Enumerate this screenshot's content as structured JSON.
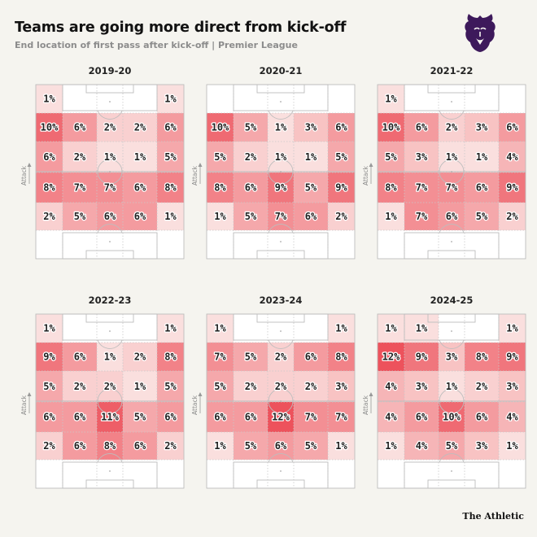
{
  "title": "Teams are going more direct from kick-off",
  "subtitle": "End location of first pass after kick-off | Premier League",
  "source": "The Athletic",
  "logo_icon": "premier-league-lion-icon",
  "colors": {
    "accent": "#e8474f",
    "logo_purple": "#3d195b",
    "empty": "#ffffff",
    "pitch_lines": "#b9b9b9"
  },
  "chart_data": {
    "type": "heatmap",
    "description_axis": "Attack",
    "value_unit": "%",
    "columns": 5,
    "rows": 6,
    "seasons": [
      {
        "season": "2019-20",
        "values": [
          [
            1,
            null,
            null,
            null,
            1
          ],
          [
            10,
            6,
            2,
            2,
            6
          ],
          [
            6,
            2,
            1,
            1,
            5
          ],
          [
            8,
            7,
            7,
            6,
            8
          ],
          [
            2,
            5,
            6,
            6,
            1
          ],
          [
            null,
            null,
            null,
            null,
            null
          ]
        ]
      },
      {
        "season": "2020-21",
        "values": [
          [
            null,
            null,
            null,
            null,
            null
          ],
          [
            10,
            5,
            1,
            3,
            6
          ],
          [
            5,
            2,
            1,
            1,
            5
          ],
          [
            8,
            6,
            9,
            5,
            9
          ],
          [
            1,
            5,
            7,
            6,
            2
          ],
          [
            null,
            null,
            null,
            null,
            null
          ]
        ]
      },
      {
        "season": "2021-22",
        "values": [
          [
            1,
            null,
            null,
            null,
            null
          ],
          [
            10,
            6,
            2,
            3,
            6
          ],
          [
            5,
            3,
            1,
            1,
            4
          ],
          [
            8,
            7,
            7,
            6,
            9
          ],
          [
            1,
            7,
            6,
            5,
            2
          ],
          [
            null,
            null,
            null,
            null,
            null
          ]
        ]
      },
      {
        "season": "2022-23",
        "values": [
          [
            1,
            null,
            null,
            null,
            1
          ],
          [
            9,
            6,
            1,
            2,
            8
          ],
          [
            5,
            2,
            2,
            1,
            5
          ],
          [
            6,
            6,
            11,
            5,
            6
          ],
          [
            2,
            6,
            8,
            6,
            2
          ],
          [
            null,
            null,
            null,
            null,
            null
          ]
        ]
      },
      {
        "season": "2023-24",
        "values": [
          [
            1,
            null,
            null,
            null,
            1
          ],
          [
            7,
            5,
            2,
            6,
            8
          ],
          [
            5,
            2,
            2,
            2,
            3
          ],
          [
            6,
            6,
            12,
            7,
            7
          ],
          [
            1,
            5,
            6,
            5,
            1
          ],
          [
            null,
            null,
            null,
            null,
            null
          ]
        ]
      },
      {
        "season": "2024-25",
        "values": [
          [
            1,
            1,
            null,
            null,
            1
          ],
          [
            12,
            9,
            3,
            8,
            9
          ],
          [
            4,
            3,
            1,
            2,
            3
          ],
          [
            4,
            6,
            10,
            6,
            4
          ],
          [
            1,
            4,
            5,
            3,
            1
          ],
          [
            null,
            null,
            null,
            null,
            null
          ]
        ]
      }
    ]
  }
}
